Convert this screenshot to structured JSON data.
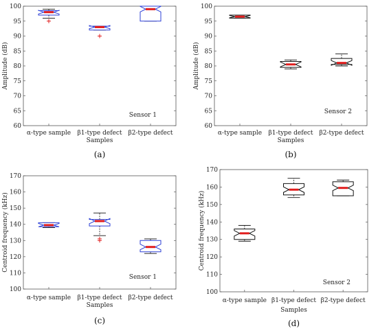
{
  "chart_data": [
    {
      "type": "box",
      "ylabel": "Amplitude (dB)",
      "xlabel": "Samples",
      "ylim": [
        60,
        100
      ],
      "yticks": [
        60,
        65,
        70,
        75,
        80,
        85,
        90,
        95,
        100
      ],
      "categories": [
        "α-type sample",
        "β1-type defect",
        "β2-type defect"
      ],
      "annotation": "Sensor 1",
      "caption": "(a)",
      "box_color": "#2b3fd6",
      "median_color": "#e11d1d",
      "boxes": [
        {
          "whisker_low": 96,
          "q1": 97,
          "median": 98,
          "q3": 98.5,
          "whisker_high": 99,
          "outliers": [
            95
          ]
        },
        {
          "whisker_low": 92,
          "q1": 92,
          "median": 93,
          "q3": 93.3,
          "whisker_high": 93.3,
          "outliers": [
            90
          ]
        },
        {
          "whisker_low": 95,
          "q1": 95,
          "median": 99,
          "q3": 100,
          "whisker_high": 100,
          "outliers": []
        }
      ]
    },
    {
      "type": "box",
      "ylabel": "Amplitude (dB)",
      "xlabel": "Samples",
      "ylim": [
        60,
        100
      ],
      "yticks": [
        60,
        65,
        70,
        75,
        80,
        85,
        90,
        95,
        100
      ],
      "categories": [
        "α-type sample",
        "β1-type defect",
        "β2-type defect"
      ],
      "annotation": "Sensor 2",
      "caption": "(b)",
      "box_color": "#111111",
      "median_color": "#e11d1d",
      "boxes": [
        {
          "whisker_low": 96,
          "q1": 96,
          "median": 96.5,
          "q3": 97,
          "whisker_high": 97,
          "outliers": []
        },
        {
          "whisker_low": 79,
          "q1": 79.5,
          "median": 80.5,
          "q3": 81.5,
          "whisker_high": 82,
          "outliers": []
        },
        {
          "whisker_low": 80,
          "q1": 80.5,
          "median": 81,
          "q3": 82.5,
          "whisker_high": 84,
          "outliers": []
        }
      ]
    },
    {
      "type": "box",
      "ylabel": "Centroid frequency (kHz)",
      "xlabel": "Samples",
      "ylim": [
        100,
        170
      ],
      "yticks": [
        100,
        110,
        120,
        130,
        140,
        150,
        160,
        170
      ],
      "categories": [
        "α-type sample",
        "β1-type defect",
        "β2-type defect"
      ],
      "annotation": "Sensor 1",
      "caption": "(c)",
      "box_color": "#2b3fd6",
      "median_color": "#e11d1d",
      "boxes": [
        {
          "whisker_low": 138,
          "q1": 138.5,
          "median": 139.5,
          "q3": 141,
          "whisker_high": 141,
          "outliers": []
        },
        {
          "whisker_low": 133,
          "q1": 139,
          "median": 142,
          "q3": 143,
          "whisker_high": 147,
          "outliers": [
            131,
            130
          ]
        },
        {
          "whisker_low": 122,
          "q1": 123,
          "median": 126,
          "q3": 130,
          "whisker_high": 131,
          "outliers": []
        }
      ]
    },
    {
      "type": "box",
      "ylabel": "Centroid frequency (kHz)",
      "xlabel": "Samples",
      "ylim": [
        100,
        170
      ],
      "yticks": [
        100,
        110,
        120,
        130,
        140,
        150,
        160,
        170
      ],
      "categories": [
        "α-type sample",
        "β1-type defect",
        "β2-type defect"
      ],
      "annotation": "Sensor 2",
      "caption": "(d)",
      "box_color": "#111111",
      "median_color": "#e11d1d",
      "boxes": [
        {
          "whisker_low": 129,
          "q1": 130,
          "median": 133.5,
          "q3": 136,
          "whisker_high": 138,
          "outliers": []
        },
        {
          "whisker_low": 154,
          "q1": 155.5,
          "median": 158.5,
          "q3": 162,
          "whisker_high": 165,
          "outliers": []
        },
        {
          "whisker_low": 155,
          "q1": 155,
          "median": 159.5,
          "q3": 163,
          "whisker_high": 164,
          "outliers": []
        }
      ]
    }
  ]
}
